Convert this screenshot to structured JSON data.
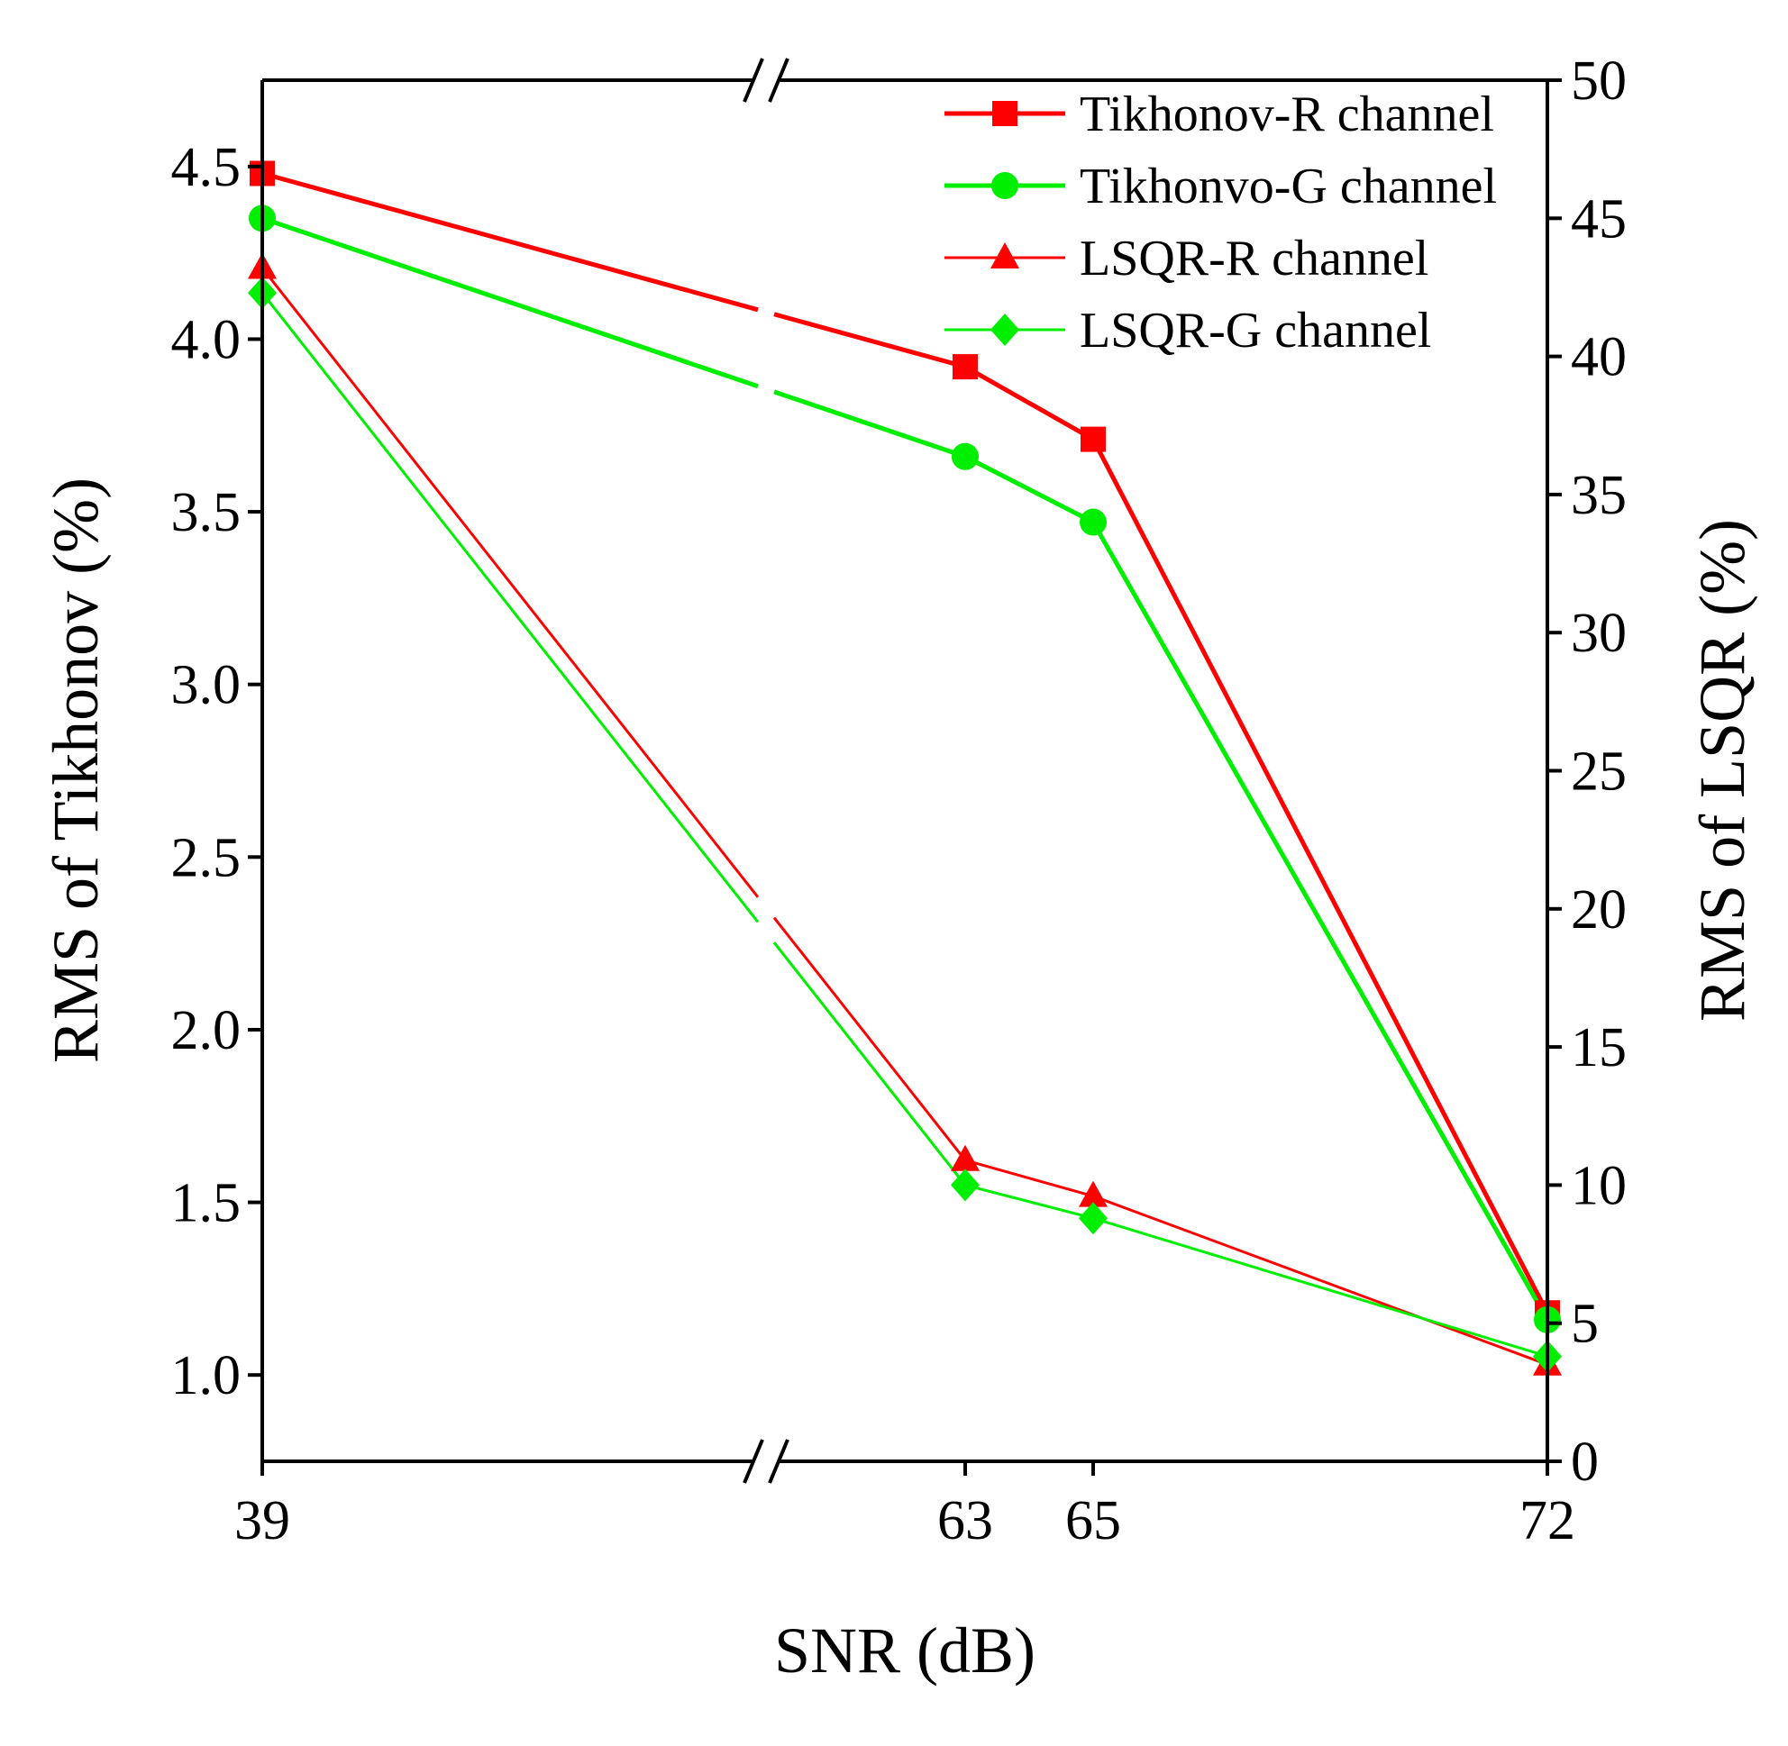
{
  "chart_data": {
    "type": "line",
    "x": [
      39,
      63,
      65,
      72
    ],
    "x_ticks": [
      "39",
      "63",
      "65",
      "72"
    ],
    "x_break": true,
    "xlabel": "SNR (dB)",
    "ylabel_left": "RMS of Tikhonov (%)",
    "ylabel_right": "RMS of LSQR (%)",
    "ylim_left": [
      0.75,
      4.75
    ],
    "ylim_right": [
      0,
      50
    ],
    "yticks_left": [
      "1.0",
      "1.5",
      "2.0",
      "2.5",
      "3.0",
      "3.5",
      "4.0",
      "4.5"
    ],
    "yticks_right": [
      "0",
      "5",
      "10",
      "15",
      "20",
      "25",
      "30",
      "35",
      "40",
      "45",
      "50"
    ],
    "legend_position": "top-right",
    "series": [
      {
        "name": "Tikhonov-R channel",
        "axis": "left",
        "marker": "square",
        "color": "#ff0000",
        "values": [
          4.48,
          3.92,
          3.71,
          1.18
        ]
      },
      {
        "name": "Tikhonvo-G channel",
        "axis": "left",
        "marker": "circle",
        "color": "#00ee00",
        "values": [
          4.35,
          3.66,
          3.47,
          1.16
        ]
      },
      {
        "name": "LSQR-R channel",
        "axis": "right",
        "marker": "triangle",
        "color": "#ff0000",
        "values": [
          43.2,
          10.9,
          9.6,
          3.5
        ]
      },
      {
        "name": "LSQR-G channel",
        "axis": "right",
        "marker": "diamond",
        "color": "#00ee00",
        "values": [
          42.3,
          10.0,
          8.8,
          3.8
        ]
      }
    ]
  }
}
